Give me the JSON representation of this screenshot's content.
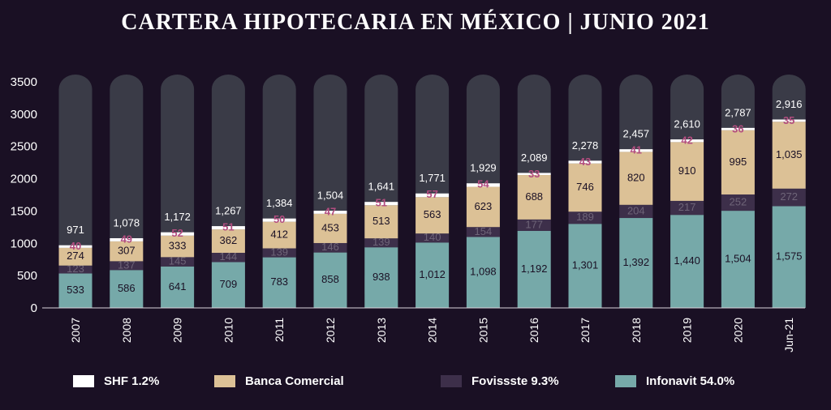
{
  "chart_data": {
    "type": "bar",
    "stacked": true,
    "title": "CARTERA HIPOTECARIA EN MÉXICO | JUNIO 2021",
    "categories": [
      "2007",
      "2008",
      "2009",
      "2010",
      "2011",
      "2012",
      "2013",
      "2014",
      "2015",
      "2016",
      "2017",
      "2018",
      "2019",
      "2020",
      "Jun-21"
    ],
    "ylim": [
      0,
      3500
    ],
    "yticks": [
      0,
      500,
      1000,
      1500,
      2000,
      2500,
      3000,
      3500
    ],
    "totals": [
      "971",
      "1,078",
      "1,172",
      "1,267",
      "1,384",
      "1,504",
      "1,641",
      "1,771",
      "1,929",
      "2,089",
      "2,278",
      "2,457",
      "2,610",
      "2,787",
      "2,916"
    ],
    "series": [
      {
        "name": "Infonavit 54.0%",
        "color": "#76a9a9",
        "label_color": "#1a1024",
        "values": [
          533,
          586,
          641,
          709,
          783,
          858,
          938,
          1012,
          1098,
          1192,
          1301,
          1392,
          1440,
          1504,
          1575
        ],
        "labels": [
          "533",
          "586",
          "641",
          "709",
          "783",
          "858",
          "938",
          "1,012",
          "1,098",
          "1,192",
          "1,301",
          "1,392",
          "1,440",
          "1,504",
          "1,575"
        ]
      },
      {
        "name": "Fovissste 9.3%",
        "color": "#3d2f4a",
        "label_color": "#6e6478",
        "values": [
          123,
          137,
          145,
          144,
          139,
          146,
          139,
          140,
          154,
          177,
          189,
          204,
          217,
          252,
          272
        ],
        "labels": [
          "123",
          "137",
          "145",
          "144",
          "139",
          "146",
          "139",
          "140",
          "154",
          "177",
          "189",
          "204",
          "217",
          "252",
          "272"
        ]
      },
      {
        "name": "Banca Comercial",
        "color": "#dcc196",
        "label_color": "#1a1024",
        "values": [
          274,
          307,
          333,
          362,
          412,
          453,
          513,
          563,
          623,
          688,
          746,
          820,
          910,
          995,
          1035
        ],
        "labels": [
          "274",
          "307",
          "333",
          "362",
          "412",
          "453",
          "513",
          "563",
          "623",
          "688",
          "746",
          "820",
          "910",
          "995",
          "1,035"
        ]
      },
      {
        "name": "SHF 1.2%",
        "color": "#ffffff",
        "label_color": "#b34d80",
        "values": [
          40,
          49,
          52,
          51,
          50,
          47,
          51,
          57,
          54,
          33,
          43,
          41,
          42,
          36,
          35
        ],
        "labels": [
          "40",
          "49",
          "52",
          "51",
          "50",
          "47",
          "51",
          "57",
          "54",
          "33",
          "43",
          "41",
          "42",
          "36",
          "35"
        ]
      }
    ],
    "legend_order": [
      "SHF 1.2%",
      "Banca Comercial",
      "Fovissste 9.3%",
      "Infonavit 54.0%"
    ],
    "legend_position": "bottom",
    "grid": false
  }
}
